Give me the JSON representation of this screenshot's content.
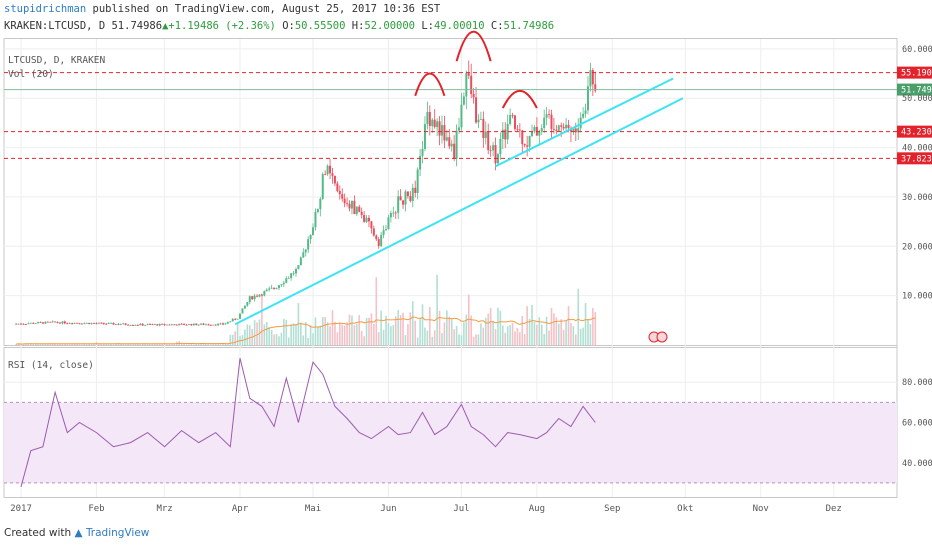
{
  "header": {
    "author": "stupidrichman",
    "published": "published on TradingView.com, August 25, 2017 10:36 EST",
    "symbol": "KRAKEN:LTCUSD, D",
    "last": "51.74986",
    "change": "+1.19486 (+2.36%)",
    "o_label": "O:",
    "o_value": "50.55500",
    "h_label": "H:",
    "h_value": "52.00000",
    "l_label": "L:",
    "l_value": "49.00010",
    "c_label": "C:",
    "c_value": "51.74986"
  },
  "legend": {
    "main": "LTCUSD, D, KRAKEN",
    "vol": "Vol (20)",
    "rsi": "RSI (14, close)"
  },
  "footer": {
    "created": "Created with",
    "brand": "TradingView"
  },
  "colors": {
    "up": "#53b987",
    "down": "#eb4d5c",
    "volume": "#b2dfd3",
    "volume_ma": "#f59b42",
    "trendline": "#3de4f3",
    "level": "#e3232c",
    "pattern": "#e3232c",
    "rsi_line": "#9c5bb0",
    "rsi_band": "#f3e7f8",
    "price_badge": "#4a9e6a"
  },
  "chart_data": [
    {
      "type": "candlestick",
      "symbol": "LTCUSD",
      "exchange": "KRAKEN",
      "interval": "D",
      "x_ticks": [
        "2017",
        "Feb",
        "Mrz",
        "Apr",
        "Mai",
        "Jun",
        "Jul",
        "Aug",
        "Sep",
        "Okt",
        "Nov",
        "Dez"
      ],
      "y_ticks": [
        "60.00000",
        "50.00000",
        "40.00000",
        "30.00000",
        "20.00000",
        "10.00000"
      ],
      "ylim": [
        0,
        62
      ],
      "last_price": "51.74986",
      "horizontal_levels": [
        {
          "value": 55.19039,
          "label": "55.19039"
        },
        {
          "value": 43.23087,
          "label": "43.23087"
        },
        {
          "value": 37.82304,
          "label": "37.82304"
        }
      ],
      "trendlines": [
        {
          "start": [
            "2017-03-30",
            4.2
          ],
          "end": [
            "2017-09-30",
            50.0
          ]
        },
        {
          "start": [
            "2017-07-15",
            36.2
          ],
          "end": [
            "2017-09-26",
            54.0
          ]
        }
      ],
      "annotations": [
        "head and shoulders arcs over Jun, Jul and Aug highs"
      ],
      "grid": true
    },
    {
      "type": "bar",
      "name": "Vol (20)",
      "description": "daily volume with 20-day moving average overlay, small before April, heavy from April to August"
    },
    {
      "type": "line",
      "name": "RSI (14, close)",
      "y_ticks": [
        "80.00000",
        "60.00000",
        "40.00000"
      ],
      "ylim": [
        23,
        97
      ],
      "band": [
        30,
        70
      ],
      "x": [
        "2017-01-01",
        "2017-01-05",
        "2017-01-10",
        "2017-01-15",
        "2017-01-20",
        "2017-01-25",
        "2017-02-01",
        "2017-02-08",
        "2017-02-15",
        "2017-02-22",
        "2017-03-01",
        "2017-03-08",
        "2017-03-15",
        "2017-03-22",
        "2017-03-28",
        "2017-04-01",
        "2017-04-05",
        "2017-04-10",
        "2017-04-15",
        "2017-04-20",
        "2017-04-25",
        "2017-05-01",
        "2017-05-05",
        "2017-05-10",
        "2017-05-15",
        "2017-05-20",
        "2017-05-25",
        "2017-06-01",
        "2017-06-05",
        "2017-06-10",
        "2017-06-15",
        "2017-06-20",
        "2017-06-25",
        "2017-07-01",
        "2017-07-05",
        "2017-07-10",
        "2017-07-15",
        "2017-07-20",
        "2017-07-25",
        "2017-08-01",
        "2017-08-05",
        "2017-08-10",
        "2017-08-15",
        "2017-08-20",
        "2017-08-25"
      ],
      "y": [
        28,
        46,
        48,
        75,
        55,
        60,
        55,
        48,
        50,
        55,
        48,
        56,
        50,
        55,
        48,
        92,
        72,
        68,
        58,
        82,
        60,
        90,
        84,
        68,
        62,
        55,
        52,
        58,
        54,
        55,
        65,
        54,
        58,
        69,
        58,
        54,
        48,
        55,
        54,
        52,
        55,
        62,
        58,
        68,
        60
      ]
    }
  ]
}
